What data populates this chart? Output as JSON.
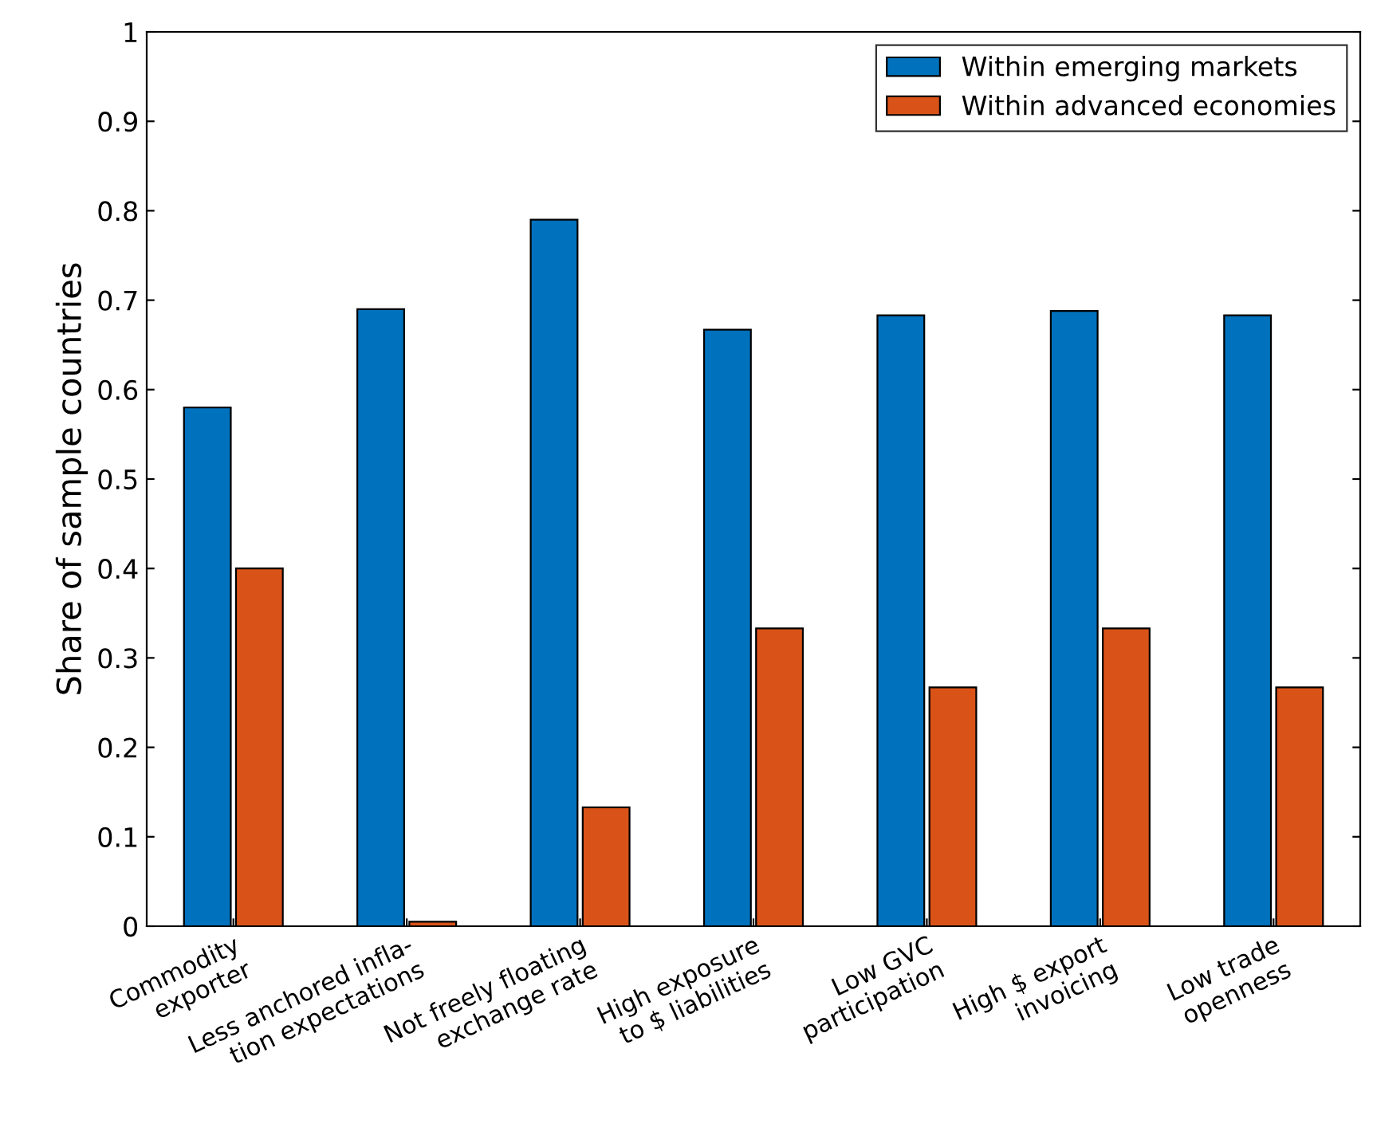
{
  "chart_data": {
    "type": "bar",
    "ylabel": "Share of sample countries",
    "categories": [
      "Commodity\nexporter",
      "Less anchored infla-\ntion expectations",
      "Not freely floating\nexchange rate",
      "High exposure\nto $ liabilities",
      "Low GVC\nparticipation",
      "High $ export\ninvoicing",
      "Low trade\nopenness"
    ],
    "series": [
      {
        "name": "Within emerging markets",
        "color": "#0072bd",
        "values": [
          0.58,
          0.69,
          0.79,
          0.667,
          0.683,
          0.688,
          0.683
        ]
      },
      {
        "name": "Within advanced economies",
        "color": "#d95319",
        "values": [
          0.4,
          0.005,
          0.133,
          0.333,
          0.267,
          0.333,
          0.267
        ]
      }
    ],
    "ylim": [
      0,
      1
    ],
    "yticks": [
      0,
      0.1,
      0.2,
      0.3,
      0.4,
      0.5,
      0.6,
      0.7,
      0.8,
      0.9,
      1
    ],
    "legend": "top right",
    "grid": false
  }
}
